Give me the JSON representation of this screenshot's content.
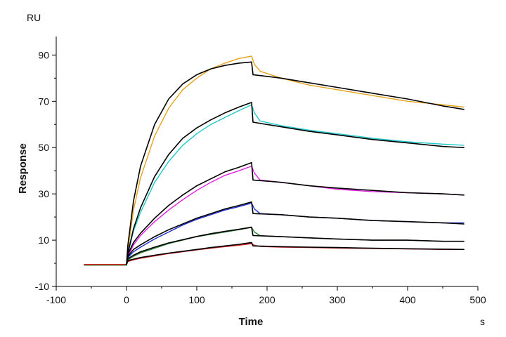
{
  "chart_data": {
    "type": "line",
    "title": "",
    "xlabel": "Time",
    "ylabel": "Response",
    "x_unit": "s",
    "y_unit": "RU",
    "xlim": [
      -100,
      500
    ],
    "ylim": [
      -10,
      100
    ],
    "xticks": [
      -100,
      0,
      100,
      200,
      300,
      400,
      500
    ],
    "yticks": [
      -10,
      10,
      30,
      50,
      70,
      90
    ],
    "grid": false,
    "legend": "none",
    "baseline": {
      "x_start": -60,
      "x_end": 0,
      "value": -0.5
    },
    "association_end": 178,
    "dissociation_end": 480,
    "series": [
      {
        "name": "measured-orange",
        "color": "#E6A21C",
        "kind": "measured",
        "values": [
          [
            -60,
            -0.5
          ],
          [
            0,
            -0.5
          ],
          [
            2,
            6
          ],
          [
            10,
            23
          ],
          [
            20,
            37
          ],
          [
            40,
            55
          ],
          [
            60,
            67
          ],
          [
            80,
            75
          ],
          [
            100,
            80
          ],
          [
            120,
            84
          ],
          [
            140,
            86.5
          ],
          [
            160,
            88.5
          ],
          [
            178,
            89.5
          ],
          [
            182,
            86
          ],
          [
            190,
            83
          ],
          [
            220,
            80
          ],
          [
            260,
            77
          ],
          [
            300,
            75
          ],
          [
            350,
            72.5
          ],
          [
            400,
            70
          ],
          [
            450,
            68.5
          ],
          [
            480,
            67.5
          ]
        ]
      },
      {
        "name": "fit-orange",
        "color": "#000000",
        "kind": "fit",
        "values": [
          [
            0,
            -0.5
          ],
          [
            2,
            8
          ],
          [
            10,
            27
          ],
          [
            20,
            42
          ],
          [
            40,
            60
          ],
          [
            60,
            71
          ],
          [
            80,
            77.5
          ],
          [
            100,
            81.5
          ],
          [
            120,
            84
          ],
          [
            140,
            85.5
          ],
          [
            160,
            86.5
          ],
          [
            178,
            87
          ],
          [
            180,
            81.5
          ],
          [
            220,
            80
          ],
          [
            260,
            78
          ],
          [
            300,
            76
          ],
          [
            350,
            73.5
          ],
          [
            400,
            71
          ],
          [
            450,
            68
          ],
          [
            480,
            66.5
          ]
        ]
      },
      {
        "name": "measured-cyan",
        "color": "#1EC8C8",
        "kind": "measured",
        "values": [
          [
            -60,
            -0.5
          ],
          [
            0,
            -0.5
          ],
          [
            2,
            4
          ],
          [
            10,
            14
          ],
          [
            20,
            22
          ],
          [
            40,
            35
          ],
          [
            60,
            44
          ],
          [
            80,
            51
          ],
          [
            100,
            56
          ],
          [
            120,
            60
          ],
          [
            140,
            63
          ],
          [
            160,
            66
          ],
          [
            178,
            68.5
          ],
          [
            182,
            65
          ],
          [
            190,
            61.5
          ],
          [
            220,
            59.5
          ],
          [
            260,
            57.5
          ],
          [
            300,
            56
          ],
          [
            350,
            54
          ],
          [
            400,
            52.5
          ],
          [
            450,
            51.5
          ],
          [
            480,
            51
          ]
        ]
      },
      {
        "name": "fit-cyan",
        "color": "#000000",
        "kind": "fit",
        "values": [
          [
            0,
            -0.5
          ],
          [
            2,
            4.5
          ],
          [
            10,
            15
          ],
          [
            20,
            24
          ],
          [
            40,
            37.5
          ],
          [
            60,
            47
          ],
          [
            80,
            54
          ],
          [
            100,
            58.5
          ],
          [
            120,
            62
          ],
          [
            140,
            65
          ],
          [
            160,
            67.5
          ],
          [
            178,
            69.5
          ],
          [
            180,
            61
          ],
          [
            220,
            59
          ],
          [
            260,
            57
          ],
          [
            300,
            55.5
          ],
          [
            350,
            53.5
          ],
          [
            400,
            52
          ],
          [
            450,
            50.5
          ],
          [
            480,
            50
          ]
        ]
      },
      {
        "name": "measured-magenta",
        "color": "#E020E0",
        "kind": "measured",
        "values": [
          [
            -60,
            -0.5
          ],
          [
            0,
            -0.5
          ],
          [
            2,
            3
          ],
          [
            10,
            8
          ],
          [
            20,
            12
          ],
          [
            40,
            18
          ],
          [
            60,
            23
          ],
          [
            80,
            27.5
          ],
          [
            100,
            31.5
          ],
          [
            120,
            35
          ],
          [
            140,
            38
          ],
          [
            160,
            40
          ],
          [
            178,
            42
          ],
          [
            182,
            39
          ],
          [
            190,
            36
          ],
          [
            220,
            35
          ],
          [
            260,
            33.5
          ],
          [
            300,
            32
          ],
          [
            350,
            31
          ],
          [
            400,
            30.5
          ],
          [
            450,
            30
          ],
          [
            480,
            29.5
          ]
        ]
      },
      {
        "name": "fit-magenta",
        "color": "#000000",
        "kind": "fit",
        "values": [
          [
            0,
            -0.5
          ],
          [
            2,
            4
          ],
          [
            10,
            9
          ],
          [
            20,
            13
          ],
          [
            40,
            19.5
          ],
          [
            60,
            25
          ],
          [
            80,
            29.5
          ],
          [
            100,
            33.5
          ],
          [
            120,
            36.5
          ],
          [
            140,
            39.5
          ],
          [
            160,
            41.5
          ],
          [
            178,
            43.5
          ],
          [
            180,
            36
          ],
          [
            220,
            35
          ],
          [
            260,
            33.5
          ],
          [
            300,
            32.5
          ],
          [
            350,
            31.5
          ],
          [
            400,
            30.5
          ],
          [
            450,
            30
          ],
          [
            480,
            29.5
          ]
        ]
      },
      {
        "name": "measured-blue",
        "color": "#2030D0",
        "kind": "measured",
        "values": [
          [
            -60,
            -0.5
          ],
          [
            0,
            -0.5
          ],
          [
            2,
            2.5
          ],
          [
            10,
            5
          ],
          [
            20,
            7
          ],
          [
            40,
            10.5
          ],
          [
            60,
            13.5
          ],
          [
            80,
            16.5
          ],
          [
            100,
            19
          ],
          [
            120,
            21
          ],
          [
            140,
            23
          ],
          [
            160,
            24.5
          ],
          [
            178,
            26
          ],
          [
            182,
            23.5
          ],
          [
            190,
            21.5
          ],
          [
            220,
            21
          ],
          [
            260,
            20
          ],
          [
            300,
            19.5
          ],
          [
            350,
            18.5
          ],
          [
            400,
            18
          ],
          [
            450,
            17.5
          ],
          [
            480,
            17.5
          ]
        ]
      },
      {
        "name": "fit-blue",
        "color": "#000000",
        "kind": "fit",
        "values": [
          [
            0,
            -0.5
          ],
          [
            2,
            3
          ],
          [
            10,
            6
          ],
          [
            20,
            8
          ],
          [
            40,
            11.5
          ],
          [
            60,
            14.5
          ],
          [
            80,
            17
          ],
          [
            100,
            19.5
          ],
          [
            120,
            21.5
          ],
          [
            140,
            23.5
          ],
          [
            160,
            25
          ],
          [
            178,
            26.5
          ],
          [
            180,
            21.5
          ],
          [
            220,
            21
          ],
          [
            260,
            20
          ],
          [
            300,
            19.5
          ],
          [
            350,
            18.5
          ],
          [
            400,
            18
          ],
          [
            450,
            17.5
          ],
          [
            480,
            17
          ]
        ]
      },
      {
        "name": "measured-green",
        "color": "#2E7D32",
        "kind": "measured",
        "values": [
          [
            -60,
            -0.8
          ],
          [
            0,
            -0.8
          ],
          [
            2,
            1.5
          ],
          [
            10,
            3
          ],
          [
            20,
            4.5
          ],
          [
            40,
            6.5
          ],
          [
            60,
            8.5
          ],
          [
            80,
            10
          ],
          [
            100,
            11.5
          ],
          [
            120,
            12.5
          ],
          [
            140,
            13.5
          ],
          [
            160,
            14.5
          ],
          [
            178,
            15.5
          ],
          [
            182,
            13.5
          ],
          [
            190,
            12
          ],
          [
            220,
            11.5
          ],
          [
            260,
            11
          ],
          [
            300,
            10.5
          ],
          [
            350,
            10
          ],
          [
            400,
            10
          ],
          [
            450,
            9.5
          ],
          [
            480,
            9.5
          ]
        ]
      },
      {
        "name": "fit-green",
        "color": "#000000",
        "kind": "fit",
        "values": [
          [
            0,
            -0.5
          ],
          [
            2,
            2
          ],
          [
            10,
            3.5
          ],
          [
            20,
            5
          ],
          [
            40,
            7
          ],
          [
            60,
            8.8
          ],
          [
            80,
            10.2
          ],
          [
            100,
            11.6
          ],
          [
            120,
            12.8
          ],
          [
            140,
            13.8
          ],
          [
            160,
            14.7
          ],
          [
            178,
            15.6
          ],
          [
            180,
            12
          ],
          [
            220,
            11.5
          ],
          [
            260,
            11
          ],
          [
            300,
            10.5
          ],
          [
            350,
            10
          ],
          [
            400,
            10
          ],
          [
            450,
            9.5
          ],
          [
            480,
            9.5
          ]
        ]
      },
      {
        "name": "measured-red",
        "color": "#D02020",
        "kind": "measured",
        "values": [
          [
            -60,
            -0.5
          ],
          [
            0,
            -0.5
          ],
          [
            2,
            0.8
          ],
          [
            10,
            1.5
          ],
          [
            20,
            2.2
          ],
          [
            40,
            3.2
          ],
          [
            60,
            4.2
          ],
          [
            80,
            5
          ],
          [
            100,
            5.8
          ],
          [
            120,
            6.5
          ],
          [
            140,
            7.2
          ],
          [
            160,
            7.8
          ],
          [
            178,
            8.5
          ],
          [
            182,
            7.8
          ],
          [
            190,
            7.3
          ],
          [
            220,
            7
          ],
          [
            260,
            6.8
          ],
          [
            300,
            6.6
          ],
          [
            350,
            6.4
          ],
          [
            400,
            6.2
          ],
          [
            450,
            6
          ],
          [
            480,
            6
          ]
        ]
      },
      {
        "name": "fit-red",
        "color": "#000000",
        "kind": "fit",
        "values": [
          [
            0,
            -0.5
          ],
          [
            2,
            1.2
          ],
          [
            10,
            1.8
          ],
          [
            20,
            2.5
          ],
          [
            40,
            3.5
          ],
          [
            60,
            4.4
          ],
          [
            80,
            5.2
          ],
          [
            100,
            6
          ],
          [
            120,
            6.8
          ],
          [
            140,
            7.5
          ],
          [
            160,
            8.2
          ],
          [
            178,
            9
          ],
          [
            180,
            7.5
          ],
          [
            220,
            7.2
          ],
          [
            260,
            7
          ],
          [
            300,
            6.8
          ],
          [
            350,
            6.5
          ],
          [
            400,
            6.3
          ],
          [
            450,
            6.1
          ],
          [
            480,
            6
          ]
        ]
      }
    ]
  }
}
